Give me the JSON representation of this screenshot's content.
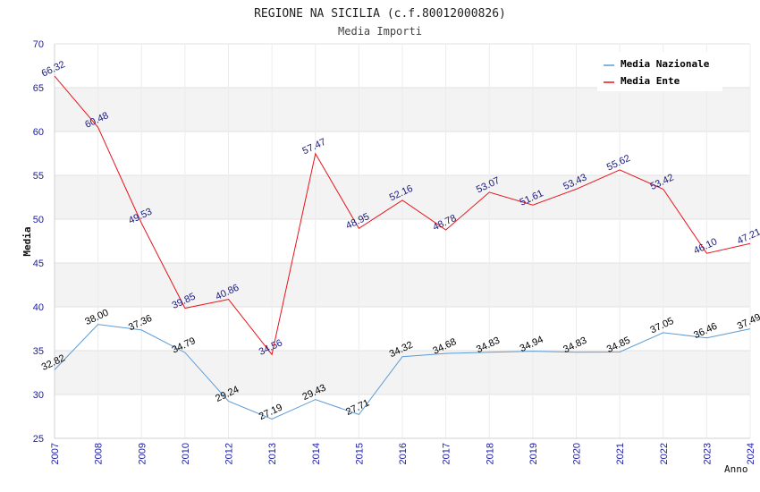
{
  "chart_data": {
    "type": "line",
    "title": "REGIONE NA SICILIA (c.f.80012000826)",
    "subtitle": "Media Importi",
    "xlabel": "Anno",
    "ylabel": "Media",
    "ylim": [
      25,
      70
    ],
    "yticks": [
      25,
      30,
      35,
      40,
      45,
      50,
      55,
      60,
      65,
      70
    ],
    "categories": [
      "2007",
      "2008",
      "2009",
      "2010",
      "2012",
      "2013",
      "2014",
      "2015",
      "2016",
      "2017",
      "2018",
      "2019",
      "2020",
      "2021",
      "2022",
      "2023",
      "2024"
    ],
    "series": [
      {
        "name": "Media Nazionale",
        "color": "#5b9bd5",
        "label_color": "#000000",
        "values": [
          32.82,
          38.0,
          37.36,
          34.79,
          29.24,
          27.19,
          29.43,
          27.71,
          34.32,
          34.68,
          34.83,
          34.94,
          34.83,
          34.85,
          37.05,
          36.46,
          37.49
        ],
        "labels": [
          "32.82",
          "38.00",
          "37.36",
          "34.79",
          "29.24",
          "27.19",
          "29.43",
          "27.71",
          "34.32",
          "34.68",
          "34.83",
          "34.94",
          "34.83",
          "34.85",
          "37.05",
          "36.46",
          "37.49"
        ]
      },
      {
        "name": "Media Ente",
        "color": "#e8141b",
        "label_color": "#1a1a80",
        "values": [
          66.32,
          60.48,
          49.53,
          39.85,
          40.86,
          34.56,
          57.47,
          48.95,
          52.16,
          48.78,
          53.07,
          51.61,
          53.43,
          55.62,
          53.42,
          46.1,
          47.21
        ],
        "labels": [
          "66.32",
          "60.48",
          "49.53",
          "39.85",
          "40.86",
          "34.56",
          "57.47",
          "48.95",
          "52.16",
          "48.78",
          "53.07",
          "51.61",
          "53.43",
          "55.62",
          "53.42",
          "46.10",
          "47.21"
        ]
      }
    ],
    "grid": true,
    "band_color": "#f3f3f3",
    "legend_position": "top-right"
  }
}
